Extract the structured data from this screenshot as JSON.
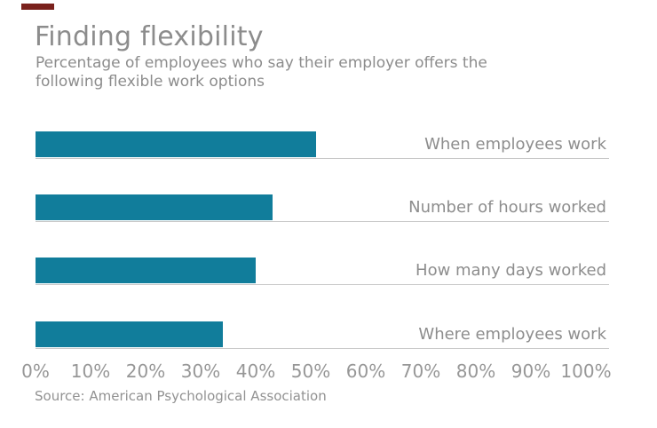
{
  "watermark": {
    "color": "#7a211c"
  },
  "chart_data": {
    "type": "bar",
    "orientation": "horizontal",
    "title": "Finding flexibility",
    "subtitle_line1": "Percentage of employees who say their employer offers the",
    "subtitle_line2": "following flexible work options",
    "categories": [
      "When employees work",
      "Number of hours worked",
      "How many days worked",
      "Where employees work"
    ],
    "values": [
      51,
      43,
      40,
      34
    ],
    "value_unit": "%",
    "xlim": [
      0,
      100
    ],
    "x_ticks": [
      "0%",
      "10%",
      "20%",
      "30%",
      "40%",
      "50%",
      "60%",
      "70%",
      "80%",
      "90%",
      "100%"
    ],
    "legend": "none",
    "gridlines": "horizontal row baselines only",
    "bar_color": "#117d9b",
    "baseline_color": "#c8c8c8",
    "text_color": "#8c8c8c",
    "source": "Source: American Psychological Association"
  }
}
